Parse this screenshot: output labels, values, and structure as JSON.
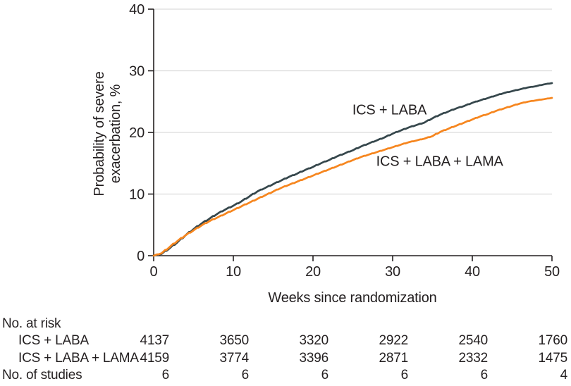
{
  "figure": {
    "background": "#ffffff",
    "text_color": "#231f20",
    "axis_color": "#231f20",
    "grid_color": "#dcdcdc"
  },
  "chart_data": {
    "type": "line",
    "subtype": "cumulative-incidence-kaplan-meier",
    "title": "",
    "xlabel": "Weeks since randomization",
    "ylabel": "Probability of severe exacerbation, %",
    "ylabel_lines": [
      "Probability of severe",
      "exacerbation, %"
    ],
    "xlim": [
      0,
      50
    ],
    "ylim": [
      0,
      40
    ],
    "xticks": [
      0,
      10,
      20,
      30,
      40,
      50
    ],
    "yticks": [
      0,
      10,
      20,
      30,
      40
    ],
    "grid": "horizontal",
    "legend_position": "inline-labels",
    "weeks": [
      0,
      1,
      2,
      3,
      4,
      5,
      6,
      7,
      8,
      9,
      10,
      11,
      12,
      13,
      14,
      15,
      16,
      17,
      18,
      19,
      20,
      21,
      22,
      23,
      24,
      25,
      26,
      27,
      28,
      29,
      30,
      31,
      32,
      33,
      34,
      35,
      36,
      37,
      38,
      39,
      40,
      41,
      42,
      43,
      44,
      45,
      46,
      47,
      48,
      49,
      50
    ],
    "series": [
      {
        "name": "ICS + LABA",
        "color": "#36474C",
        "label_pos": {
          "week": 29.6,
          "pct": 23.7
        },
        "values": [
          0,
          0.3,
          1.2,
          2.2,
          3.3,
          4.3,
          5.2,
          6.0,
          6.8,
          7.5,
          8.1,
          8.8,
          9.6,
          10.4,
          11.0,
          11.6,
          12.2,
          12.8,
          13.3,
          13.9,
          14.4,
          15.0,
          15.5,
          16.1,
          16.6,
          17.1,
          17.7,
          18.2,
          18.7,
          19.2,
          19.8,
          20.3,
          20.8,
          21.2,
          21.6,
          22.3,
          22.9,
          23.4,
          23.9,
          24.3,
          24.8,
          25.2,
          25.6,
          26.0,
          26.4,
          26.7,
          27.0,
          27.3,
          27.5,
          27.8,
          28.0
        ]
      },
      {
        "name": "ICS + LABA + LAMA",
        "color": "#F6861F",
        "label_pos": {
          "week": 35.9,
          "pct": 15.4
        },
        "values": [
          0,
          0.4,
          1.4,
          2.4,
          3.3,
          4.1,
          4.9,
          5.6,
          6.2,
          6.8,
          7.4,
          8.0,
          8.6,
          9.2,
          9.8,
          10.4,
          11.0,
          11.5,
          12.0,
          12.5,
          13.0,
          13.5,
          14.0,
          14.5,
          15.0,
          15.5,
          16.0,
          16.4,
          16.8,
          17.2,
          17.6,
          18.0,
          18.4,
          18.7,
          19.0,
          19.4,
          20.1,
          20.6,
          21.1,
          21.6,
          22.1,
          22.6,
          23.0,
          23.5,
          23.9,
          24.3,
          24.7,
          25.0,
          25.2,
          25.4,
          25.6
        ]
      }
    ]
  },
  "risk_table": {
    "title": "No. at risk",
    "weeks": [
      0,
      10,
      20,
      30,
      40,
      50
    ],
    "rows": [
      {
        "label": "ICS + LABA",
        "values": [
          4137,
          3650,
          3320,
          2922,
          2540,
          1760
        ]
      },
      {
        "label": "ICS + LABA + LAMA",
        "values": [
          4159,
          3774,
          3396,
          2871,
          2332,
          1475
        ]
      }
    ],
    "studies_row": {
      "label": "No. of studies",
      "values": [
        6,
        6,
        6,
        6,
        6,
        4
      ]
    }
  }
}
